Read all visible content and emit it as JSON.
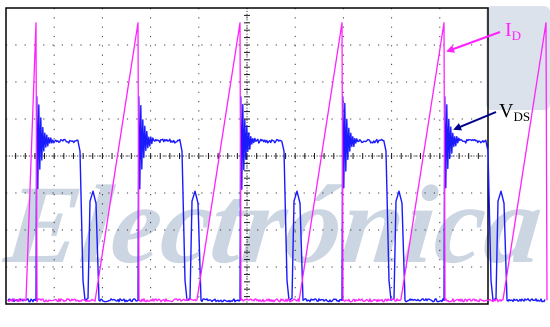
{
  "chart_data": {
    "type": "line",
    "title": "",
    "xlabel": "",
    "ylabel": "",
    "grid": true,
    "grid_divisions": {
      "x": 10,
      "y": 8
    },
    "series": [
      {
        "name": "ID",
        "label_main": "I",
        "label_sub": "D",
        "color": "#ff22ff",
        "shape": "sawtooth: flat baseline, linear ramp-up, vertical drop",
        "cycles": 5,
        "peak_divisions": 7.6,
        "baseline_divisions": 0.1
      },
      {
        "name": "VDS",
        "label_main": "V",
        "label_sub": "DS",
        "color": "#1a1aff",
        "shape": "pulse train: spike at rise, flat plateau with ringing, fall, small resonant bump",
        "cycles": 5,
        "plateau_divisions": 4.4,
        "spike_divisions": 5.6,
        "baseline_divisions": 0.1
      }
    ]
  },
  "watermark": {
    "text": "Electrónica",
    "color": "#c4cedd"
  },
  "colors": {
    "grid": "#1a1a1a",
    "frame": "#000000",
    "arrow_id": "#ff22ff",
    "arrow_vds": "#00008b"
  }
}
